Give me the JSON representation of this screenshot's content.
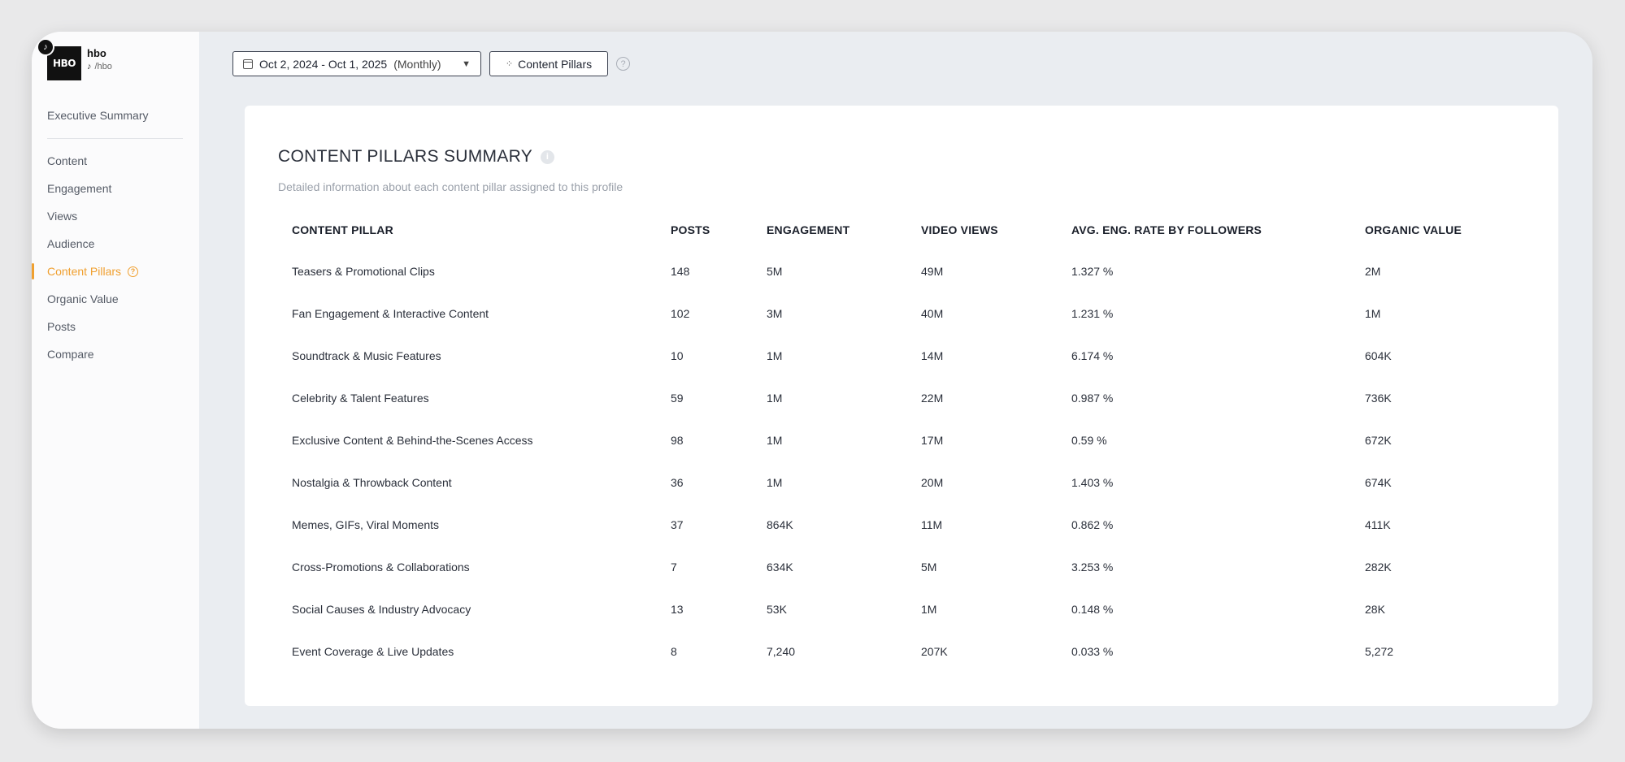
{
  "profile": {
    "name": "hbo",
    "handle": "/hbo",
    "logo_text": "HBO"
  },
  "sidebar": {
    "items": [
      {
        "label": "Executive Summary"
      },
      {
        "label": "Content"
      },
      {
        "label": "Engagement"
      },
      {
        "label": "Views"
      },
      {
        "label": "Audience"
      },
      {
        "label": "Content Pillars"
      },
      {
        "label": "Organic Value"
      },
      {
        "label": "Posts"
      },
      {
        "label": "Compare"
      }
    ],
    "active_index": 5
  },
  "toolbar": {
    "date_range": "Oct 2, 2024 - Oct 1, 2025",
    "period": "(Monthly)",
    "pillars_label": "Content Pillars"
  },
  "card": {
    "title": "CONTENT PILLARS SUMMARY",
    "subtitle": "Detailed information about each content pillar assigned to this profile"
  },
  "table": {
    "columns": [
      "CONTENT PILLAR",
      "POSTS",
      "ENGAGEMENT",
      "VIDEO VIEWS",
      "AVG. ENG. RATE BY FOLLOWERS",
      "ORGANIC VALUE"
    ],
    "rows": [
      [
        "Teasers & Promotional Clips",
        "148",
        "5M",
        "49M",
        "1.327 %",
        "2M"
      ],
      [
        "Fan Engagement & Interactive Content",
        "102",
        "3M",
        "40M",
        "1.231 %",
        "1M"
      ],
      [
        "Soundtrack & Music Features",
        "10",
        "1M",
        "14M",
        "6.174 %",
        "604K"
      ],
      [
        "Celebrity & Talent Features",
        "59",
        "1M",
        "22M",
        "0.987 %",
        "736K"
      ],
      [
        "Exclusive Content & Behind-the-Scenes Access",
        "98",
        "1M",
        "17M",
        "0.59 %",
        "672K"
      ],
      [
        "Nostalgia & Throwback Content",
        "36",
        "1M",
        "20M",
        "1.403 %",
        "674K"
      ],
      [
        "Memes, GIFs, Viral Moments",
        "37",
        "864K",
        "11M",
        "0.862 %",
        "411K"
      ],
      [
        "Cross-Promotions & Collaborations",
        "7",
        "634K",
        "5M",
        "3.253 %",
        "282K"
      ],
      [
        "Social Causes & Industry Advocacy",
        "13",
        "53K",
        "1M",
        "0.148 %",
        "28K"
      ],
      [
        "Event Coverage & Live Updates",
        "8",
        "7,240",
        "207K",
        "0.033 %",
        "5,272"
      ]
    ]
  },
  "colors": {
    "accent": "#f0a030",
    "background": "#eaedf1",
    "card": "#ffffff"
  },
  "icons": [
    "tiktok-icon",
    "calendar-icon",
    "caret-down-icon",
    "sparkle-icon",
    "help-icon",
    "info-icon"
  ]
}
